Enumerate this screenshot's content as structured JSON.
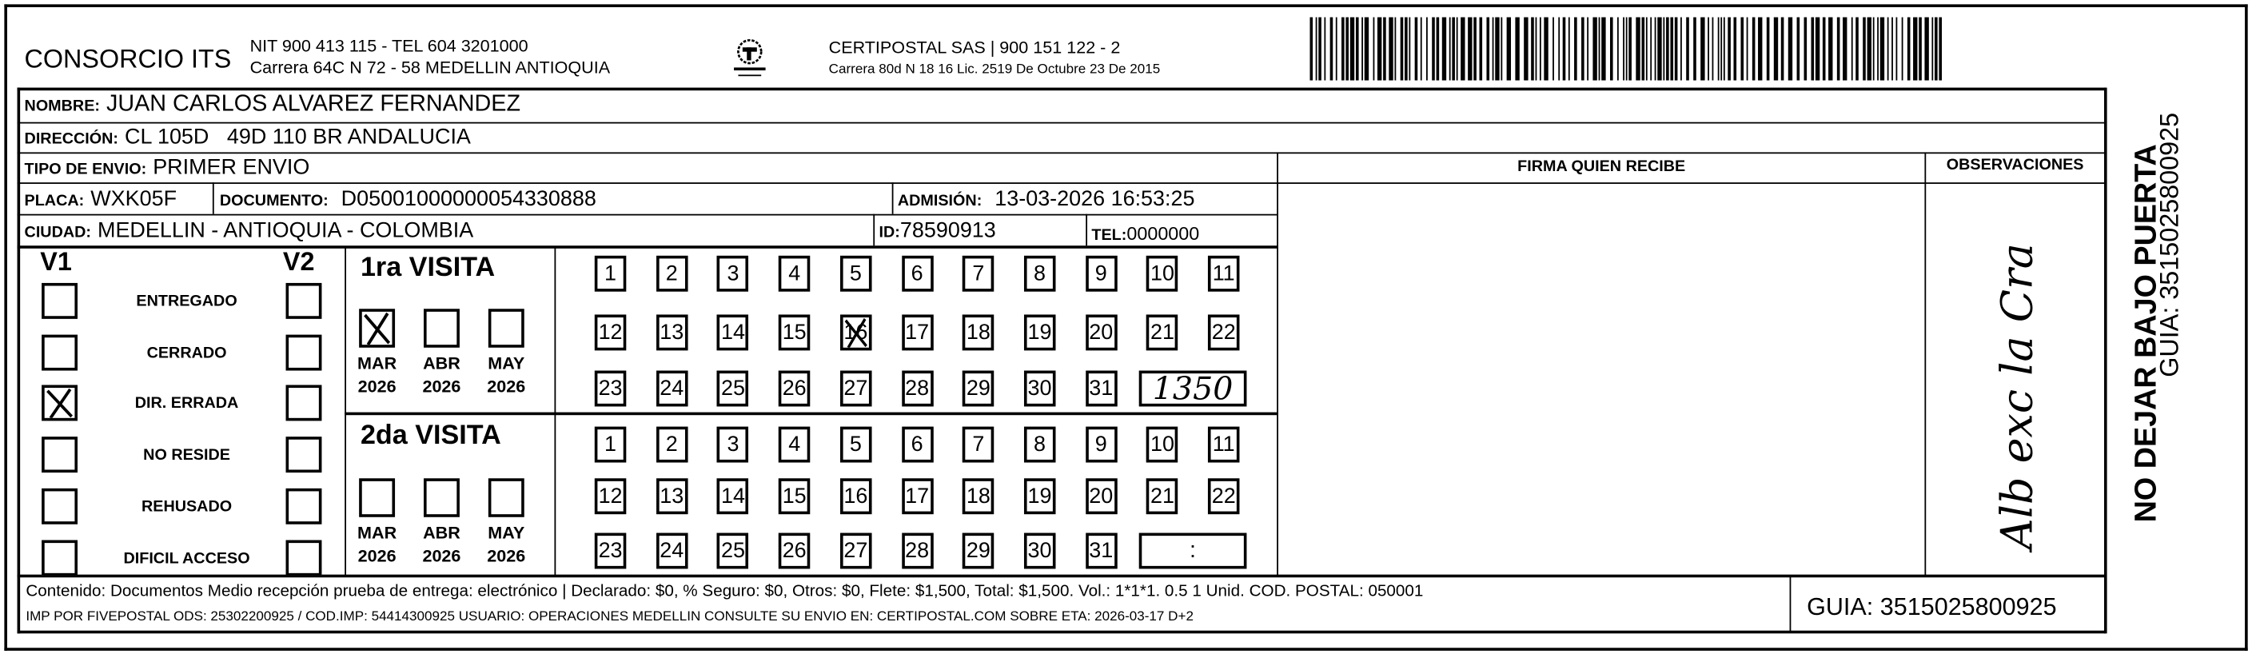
{
  "header": {
    "sender_name": "CONSORCIO ITS",
    "sender_nit": "NIT 900 413 115 - TEL 604 3201000",
    "sender_address": "Carrera 64C N 72 - 58 MEDELLIN ANTIOQUIA",
    "logo_text": "CERTIPOSTAL",
    "carrier_name": "CERTIPOSTAL SAS | 900 151 122 - 2",
    "carrier_license": "Carrera 80d N 18 16  Lic. 2519 De Octubre 23 De 2015",
    "barcode_icon": "barcode"
  },
  "recipient": {
    "nombre_label": "NOMBRE:",
    "nombre": "JUAN CARLOS ALVAREZ FERNANDEZ",
    "direccion_label": "DIRECCIÓN:",
    "direccion": "CL 105D   49D 110 BR ANDALUCIA",
    "tipo_label": "TIPO DE ENVIO:",
    "tipo": "PRIMER ENVIO",
    "placa_label": "PLACA:",
    "placa": "WXK05F",
    "documento_label": "DOCUMENTO:",
    "documento": "D05001000000054330888",
    "admision_label": "ADMISIÓN:",
    "admision": "13-03-2026 16:53:25",
    "ciudad_label": "CIUDAD:",
    "ciudad": "MEDELLIN - ANTIOQUIA - COLOMBIA",
    "id_label": "ID:",
    "id": "78590913",
    "tel_label": "TEL:",
    "tel": "0000000"
  },
  "firma": {
    "header": "FIRMA QUIEN RECIBE"
  },
  "observaciones": {
    "header": "OBSERVACIONES",
    "handwritten": "Alb exc la Cra"
  },
  "status": {
    "v1_label": "V1",
    "v2_label": "V2",
    "items": [
      {
        "label": "ENTREGADO",
        "v1": false,
        "v2": false
      },
      {
        "label": "CERRADO",
        "v1": false,
        "v2": false
      },
      {
        "label": "DIR. ERRADA",
        "v1": true,
        "v2": false
      },
      {
        "label": "NO RESIDE",
        "v1": false,
        "v2": false
      },
      {
        "label": "REHUSADO",
        "v1": false,
        "v2": false
      },
      {
        "label": "DIFICIL ACCESO",
        "v1": false,
        "v2": false
      }
    ]
  },
  "visits": [
    {
      "title": "1ra VISITA",
      "months": [
        {
          "month": "MAR",
          "year": "2026",
          "checked": true
        },
        {
          "month": "ABR",
          "year": "2026",
          "checked": false
        },
        {
          "month": "MAY",
          "year": "2026",
          "checked": false
        }
      ],
      "marked_day": 16,
      "time": "1350"
    },
    {
      "title": "2da VISITA",
      "months": [
        {
          "month": "MAR",
          "year": "2026",
          "checked": false
        },
        {
          "month": "ABR",
          "year": "2026",
          "checked": false
        },
        {
          "month": "MAY",
          "year": "2026",
          "checked": false
        }
      ],
      "marked_day": null,
      "time": ":"
    }
  ],
  "footer": {
    "line1": "Contenido: Documentos Medio recepción prueba de entrega: electrónico | Declarado: $0, % Seguro: $0, Otros: $0, Flete: $1,500, Total: $1,500. Vol.: 1*1*1. 0.5  1 Unid. COD. POSTAL: 050001",
    "line2": "IMP POR FIVEPOSTAL ODS: 25302200925 / COD.IMP: 54414300925 USUARIO: OPERACIONES MEDELLIN CONSULTE SU ENVIO EN: CERTIPOSTAL.COM SOBRE ETA: 2026-03-17 D+2",
    "guia": "GUIA: 3515025800925"
  },
  "side": {
    "warning": "NO DEJAR BAJO PUERTA",
    "guia": "GUIA: 3515025800925"
  }
}
